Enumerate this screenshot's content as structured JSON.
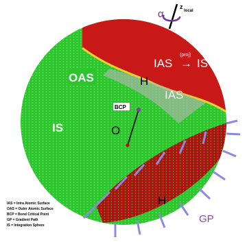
{
  "axis": {
    "angle": "α",
    "z": "z",
    "z_sub": "local"
  },
  "labels": {
    "oas": "OAS",
    "h_top": "H",
    "ias": "IAS",
    "proj_ias": "IAS",
    "proj_sup": "(proj)",
    "proj_arrow": "→",
    "proj_is": "IS",
    "bcp": "BCP",
    "origin": "O",
    "is": "IS",
    "h_bottom": "H",
    "gp": "GP"
  },
  "legend": [
    "IAS = Intra Atomic Surface",
    "OAS = Outer Atomic Surface",
    "BCP = Bond Critical Point",
    "GP = Gradient Path",
    "IS = Integration Sphere"
  ]
}
